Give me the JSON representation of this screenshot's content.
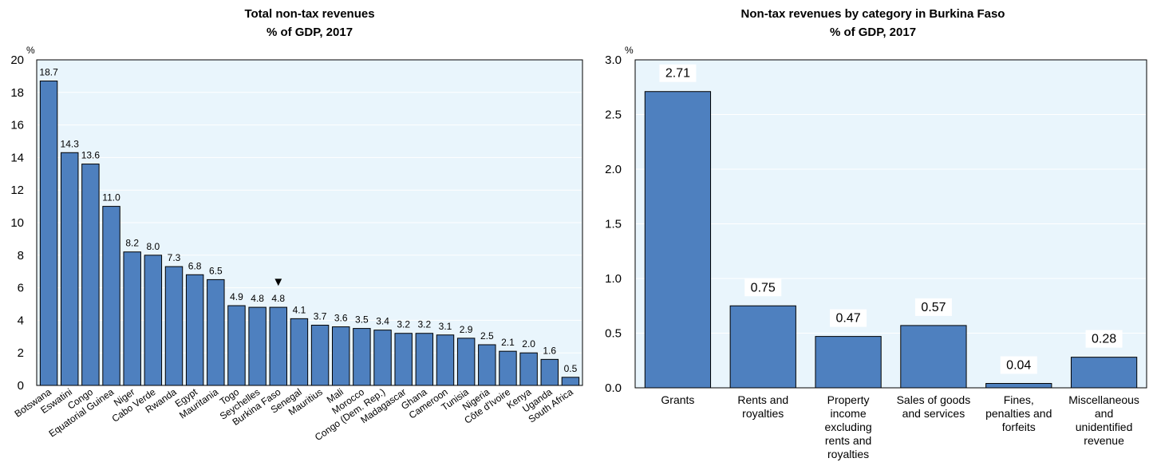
{
  "chart_data": [
    {
      "type": "bar",
      "title": "Total non-tax revenues",
      "subtitle": "% of GDP, 2017",
      "ylabel": "%",
      "ylim": [
        0,
        20
      ],
      "yticks": [
        0,
        2,
        4,
        6,
        8,
        10,
        12,
        14,
        16,
        18,
        20
      ],
      "grid": true,
      "categories": [
        "Botswana",
        "Eswatini",
        "Congo",
        "Equatorial Guinea",
        "Niger",
        "Cabo Verde",
        "Rwanda",
        "Egypt",
        "Mauritania",
        "Togo",
        "Seychelles",
        "Burkina Faso",
        "Senegal",
        "Mauritius",
        "Mali",
        "Morocco",
        "Congo (Dem. Rep.)",
        "Madagascar",
        "Ghana",
        "Cameroon",
        "Tunisia",
        "Nigeria",
        "Côte d'Ivoire",
        "Kenya",
        "Uganda",
        "South Africa"
      ],
      "values": [
        18.7,
        14.3,
        13.6,
        11.0,
        8.2,
        8.0,
        7.3,
        6.8,
        6.5,
        4.9,
        4.8,
        4.8,
        4.1,
        3.7,
        3.6,
        3.5,
        3.4,
        3.2,
        3.2,
        3.1,
        2.9,
        2.5,
        2.1,
        2.0,
        1.6,
        0.5
      ],
      "value_labels": [
        "18.7",
        "14.3",
        "13.6",
        "11.0",
        "8.2",
        "8.0",
        "7.3",
        "6.8",
        "6.5",
        "4.9",
        "4.8",
        "4.8",
        "4.1",
        "3.7",
        "3.6",
        "3.5",
        "3.4",
        "3.2",
        "3.2",
        "3.1",
        "2.9",
        "2.5",
        "2.1",
        "2.0",
        "1.6",
        "0.5"
      ],
      "highlight": {
        "category": "Burkina Faso",
        "marker": "▼"
      },
      "bar_color": "#4e80bf",
      "plot_background": "#e9f5fc"
    },
    {
      "type": "bar",
      "title": "Non-tax revenues by category in Burkina Faso",
      "subtitle": "% of GDP, 2017",
      "ylabel": "%",
      "ylim": [
        0,
        3.0
      ],
      "yticks": [
        "0.0",
        "0.5",
        "1.0",
        "1.5",
        "2.0",
        "2.5",
        "3.0"
      ],
      "grid": true,
      "categories": [
        [
          "Grants"
        ],
        [
          "Rents and",
          "royalties"
        ],
        [
          "Property",
          "income",
          "excluding",
          "rents and",
          "royalties"
        ],
        [
          "Sales of goods",
          "and services"
        ],
        [
          "Fines,",
          "penalties and",
          "forfeits"
        ],
        [
          "Miscellaneous",
          "and",
          "unidentified",
          "revenue"
        ]
      ],
      "values": [
        2.71,
        0.75,
        0.47,
        0.57,
        0.04,
        0.28
      ],
      "value_labels": [
        "2.71",
        "0.75",
        "0.47",
        "0.57",
        "0.04",
        "0.28"
      ],
      "bar_color": "#4e80bf",
      "plot_background": "#e9f5fc"
    }
  ]
}
